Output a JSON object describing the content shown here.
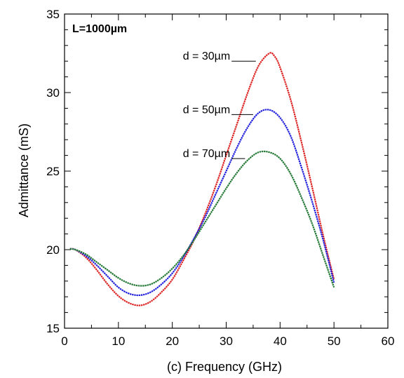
{
  "chart_data": {
    "type": "line",
    "xlabel": "(c) Frequency (GHz)",
    "ylabel": "Admittance (mS)",
    "xlim": [
      0,
      60
    ],
    "ylim": [
      15,
      35
    ],
    "xticks": [
      0,
      10,
      20,
      30,
      40,
      50,
      60
    ],
    "yticks": [
      15,
      20,
      25,
      30,
      35
    ],
    "grid": false,
    "annotation": "L=1000µm",
    "series": [
      {
        "name": "d = 30µm",
        "color": "#dd2222",
        "label_anchor": [
          31,
          32
        ],
        "leader_end": [
          35.5,
          32
        ],
        "x": [
          1,
          2,
          4,
          6,
          8,
          10,
          12,
          14,
          16,
          18,
          20,
          22,
          24,
          26,
          28,
          30,
          32,
          34,
          36,
          38,
          39,
          40,
          42,
          44,
          46,
          48,
          50
        ],
        "y": [
          20.05,
          20.0,
          19.5,
          18.7,
          17.8,
          17.05,
          16.6,
          16.45,
          16.7,
          17.3,
          18.1,
          19.3,
          20.6,
          22.2,
          24.0,
          26.0,
          28.0,
          30.0,
          31.7,
          32.5,
          32.3,
          31.6,
          29.5,
          26.8,
          23.9,
          20.9,
          18.1
        ]
      },
      {
        "name": "d = 50µm",
        "color": "#1f1fdd",
        "label_anchor": [
          31,
          28.6
        ],
        "leader_end": [
          35,
          28.6
        ],
        "x": [
          1,
          2,
          4,
          6,
          8,
          10,
          12,
          14,
          16,
          18,
          20,
          22,
          24,
          26,
          28,
          30,
          32,
          34,
          36,
          38,
          40,
          42,
          44,
          46,
          48,
          50
        ],
        "y": [
          20.05,
          20.0,
          19.6,
          19.0,
          18.3,
          17.6,
          17.2,
          17.1,
          17.3,
          17.8,
          18.5,
          19.5,
          20.7,
          22.0,
          23.5,
          25.0,
          26.5,
          27.8,
          28.7,
          28.9,
          28.4,
          27.2,
          25.2,
          23.0,
          20.6,
          17.9
        ]
      },
      {
        "name": "d = 70µm",
        "color": "#227733",
        "label_anchor": [
          31,
          25.8
        ],
        "leader_end": [
          33.5,
          25.8
        ],
        "x": [
          1,
          2,
          4,
          6,
          8,
          10,
          12,
          14,
          16,
          18,
          20,
          22,
          24,
          26,
          28,
          30,
          32,
          34,
          36,
          38,
          40,
          42,
          44,
          46,
          48,
          50
        ],
        "y": [
          20.05,
          20.0,
          19.7,
          19.2,
          18.7,
          18.2,
          17.85,
          17.7,
          17.8,
          18.2,
          18.8,
          19.6,
          20.6,
          21.7,
          22.8,
          23.9,
          24.9,
          25.7,
          26.2,
          26.2,
          25.8,
          24.8,
          23.3,
          21.6,
          19.6,
          17.6
        ]
      }
    ]
  }
}
